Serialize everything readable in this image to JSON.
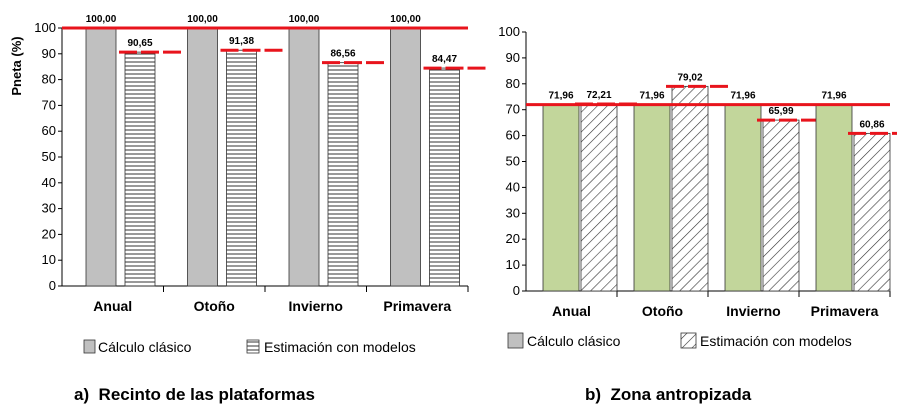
{
  "chart_data": [
    {
      "type": "bar",
      "panel_label": "a)  Recinto de las plataformas",
      "ylabel": "Pneta (%)",
      "ylim": [
        0,
        100
      ],
      "yticks": [
        "0",
        "10",
        "20",
        "30",
        "40",
        "50",
        "60",
        "70",
        "80",
        "90",
        "100"
      ],
      "categories": [
        "Anual",
        "Otoño",
        "Invierno",
        "Primavera"
      ],
      "series": [
        {
          "name": "Cálculo clásico",
          "color": "#c0c0c0",
          "pattern": "solid",
          "values": [
            100.0,
            100.0,
            100.0,
            100.0
          ],
          "labels": [
            "100,00",
            "100,00",
            "100,00",
            "100,00"
          ]
        },
        {
          "name": "Estimación con modelos",
          "color": "#ffffff",
          "pattern": "horizontal-lines",
          "values": [
            90.65,
            91.38,
            86.56,
            84.47
          ],
          "labels": [
            "90,65",
            "91,38",
            "86,56",
            "84,47"
          ]
        }
      ],
      "reference_line": 100,
      "reference_color": "#e8141c",
      "grid": false,
      "legend": "bottom"
    },
    {
      "type": "bar",
      "panel_label": "b)  Zona antropizada",
      "ylabel": "",
      "ylim": [
        0,
        100
      ],
      "yticks": [
        "0",
        "10",
        "20",
        "30",
        "40",
        "50",
        "60",
        "70",
        "80",
        "90",
        "100"
      ],
      "categories": [
        "Anual",
        "Otoño",
        "Invierno",
        "Primavera"
      ],
      "series": [
        {
          "name": "Cálculo clásico",
          "color": "#c2d69b",
          "legend_color": "#c0c0c0",
          "pattern": "solid",
          "values": [
            71.96,
            71.96,
            71.96,
            71.96
          ],
          "labels": [
            "71,96",
            "71,96",
            "71,96",
            "71,96"
          ]
        },
        {
          "name": "Estimación con modelos",
          "color": "#ffffff",
          "pattern": "diagonal-lines",
          "values": [
            72.21,
            79.02,
            65.99,
            60.86
          ],
          "labels": [
            "72,21",
            "79,02",
            "65,99",
            "60,86"
          ]
        }
      ],
      "reference_line": 71.96,
      "reference_color": "#e8141c",
      "grid": false,
      "legend": "bottom"
    }
  ]
}
